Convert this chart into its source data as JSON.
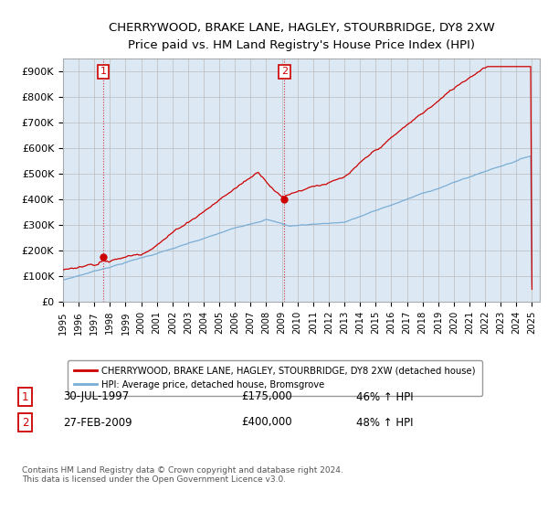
{
  "title": "CHERRYWOOD, BRAKE LANE, HAGLEY, STOURBRIDGE, DY8 2XW",
  "subtitle": "Price paid vs. HM Land Registry's House Price Index (HPI)",
  "ylabel_ticks": [
    "£0",
    "£100K",
    "£200K",
    "£300K",
    "£400K",
    "£500K",
    "£600K",
    "£700K",
    "£800K",
    "£900K"
  ],
  "ytick_vals": [
    0,
    100000,
    200000,
    300000,
    400000,
    500000,
    600000,
    700000,
    800000,
    900000
  ],
  "ylim": [
    0,
    950000
  ],
  "xlim_start": 1995.0,
  "xlim_end": 2025.5,
  "legend_property_label": "CHERRYWOOD, BRAKE LANE, HAGLEY, STOURBRIDGE, DY8 2XW (detached house)",
  "legend_hpi_label": "HPI: Average price, detached house, Bromsgrove",
  "property_color": "#cc0000",
  "hpi_color": "#7aadd4",
  "plot_bg_color": "#dce9f5",
  "sale1_x": 1997.583,
  "sale1_y": 175000,
  "sale1_label": "1",
  "sale1_date": "30-JUL-1997",
  "sale1_price": "£175,000",
  "sale1_hpi": "46% ↑ HPI",
  "sale2_x": 2009.16,
  "sale2_y": 400000,
  "sale2_label": "2",
  "sale2_date": "27-FEB-2009",
  "sale2_price": "£400,000",
  "sale2_hpi": "48% ↑ HPI",
  "footnote": "Contains HM Land Registry data © Crown copyright and database right 2024.\nThis data is licensed under the Open Government Licence v3.0.",
  "background_color": "#ffffff",
  "grid_color": "#bbbbbb"
}
